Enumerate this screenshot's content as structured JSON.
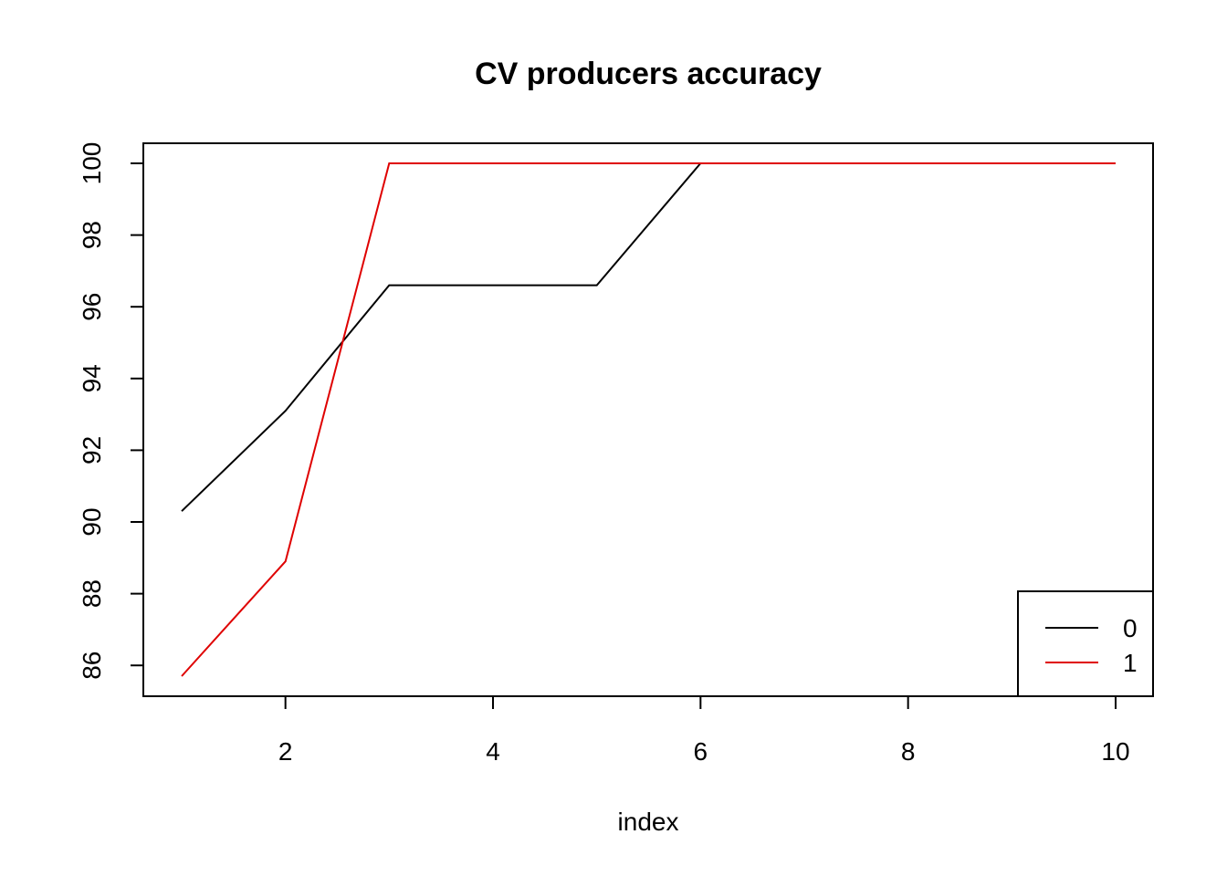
{
  "chart_data": {
    "type": "line",
    "title": "CV producers accuracy",
    "xlabel": "index",
    "ylabel": "",
    "x": [
      1,
      2,
      3,
      4,
      5,
      6,
      7,
      8,
      9,
      10
    ],
    "xlim": [
      1,
      10
    ],
    "ylim": [
      85.7,
      100
    ],
    "x_ticks": [
      2,
      4,
      6,
      8,
      10
    ],
    "y_ticks": [
      86,
      88,
      90,
      92,
      94,
      96,
      98,
      100
    ],
    "x_tick_labels": [
      "2",
      "4",
      "6",
      "8",
      "10"
    ],
    "y_tick_labels": [
      "86",
      "88",
      "90",
      "92",
      "94",
      "96",
      "98",
      "100"
    ],
    "grid": false,
    "legend": {
      "position": "bottom-right"
    },
    "series": [
      {
        "name": "0",
        "color": "#000000",
        "values": [
          90.3,
          93.1,
          96.6,
          96.6,
          96.6,
          100,
          100,
          100,
          100,
          100
        ]
      },
      {
        "name": "1",
        "color": "#DF0000",
        "values": [
          85.7,
          88.9,
          100,
          100,
          100,
          100,
          100,
          100,
          100,
          100
        ]
      }
    ]
  }
}
